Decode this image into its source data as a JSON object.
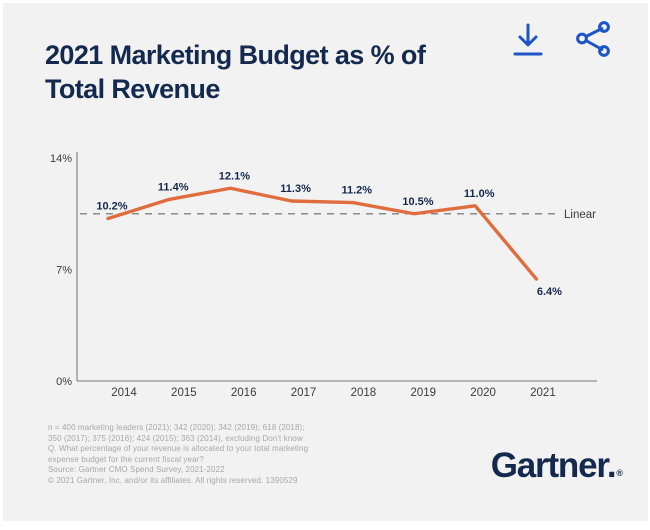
{
  "header": {
    "title": "2021 Marketing Budget as % of Total Revenue",
    "icons": [
      {
        "name": "download-icon",
        "color": "#1d54c7"
      },
      {
        "name": "share-icon",
        "color": "#1d54c7"
      }
    ]
  },
  "chart_data": {
    "type": "line",
    "title": "2021 Marketing Budget as % of Total Revenue",
    "categories": [
      "2014",
      "2015",
      "2016",
      "2017",
      "2018",
      "2019",
      "2020",
      "2021"
    ],
    "series": [
      {
        "name": "Marketing budget as % of total revenue",
        "values": [
          10.2,
          11.4,
          12.1,
          11.3,
          11.2,
          10.5,
          11.0,
          6.4
        ],
        "color": "#df6d3e"
      }
    ],
    "data_labels": [
      "10.2%",
      "11.4%",
      "12.1%",
      "11.3%",
      "11.2%",
      "10.5%",
      "11.0%",
      "6.4%"
    ],
    "yticks": [
      {
        "label": "14%",
        "value": 14
      },
      {
        "label": "7%",
        "value": 7
      },
      {
        "label": "0%",
        "value": 0
      }
    ],
    "ylim": [
      0,
      14
    ],
    "grid": false,
    "legend": "none",
    "reference_line": {
      "label": "Linear",
      "value": 10.5,
      "style": "dashed",
      "color": "#8b8b8b"
    }
  },
  "footer": {
    "lines": [
      "n = 400 marketing leaders (2021); 342 (2020); 342 (2019); 618 (2018);",
      "350 (2017); 375 (2016); 424 (2015); 363 (2014), excluding Don't know",
      "Q. What percentage of your revenue is allocated to your total marketing",
      "expense budget for the current fiscal year?",
      "Source: Gartner CMO Spend Survey, 2021-2022",
      "© 2021 Gartner, Inc. and/or its affiliates. All rights reserved. 1390529"
    ]
  },
  "logo": {
    "text": "Gartner.",
    "registered": "®"
  },
  "colors": {
    "card_bg": "#f2f2f2",
    "navy": "#14294e",
    "action_blue": "#1d54c7",
    "line_orange": "#df6d3e",
    "axis_gray": "#8f8f8f",
    "tick_text": "#3c3c3c",
    "footer_gray": "#a8a8a8"
  }
}
